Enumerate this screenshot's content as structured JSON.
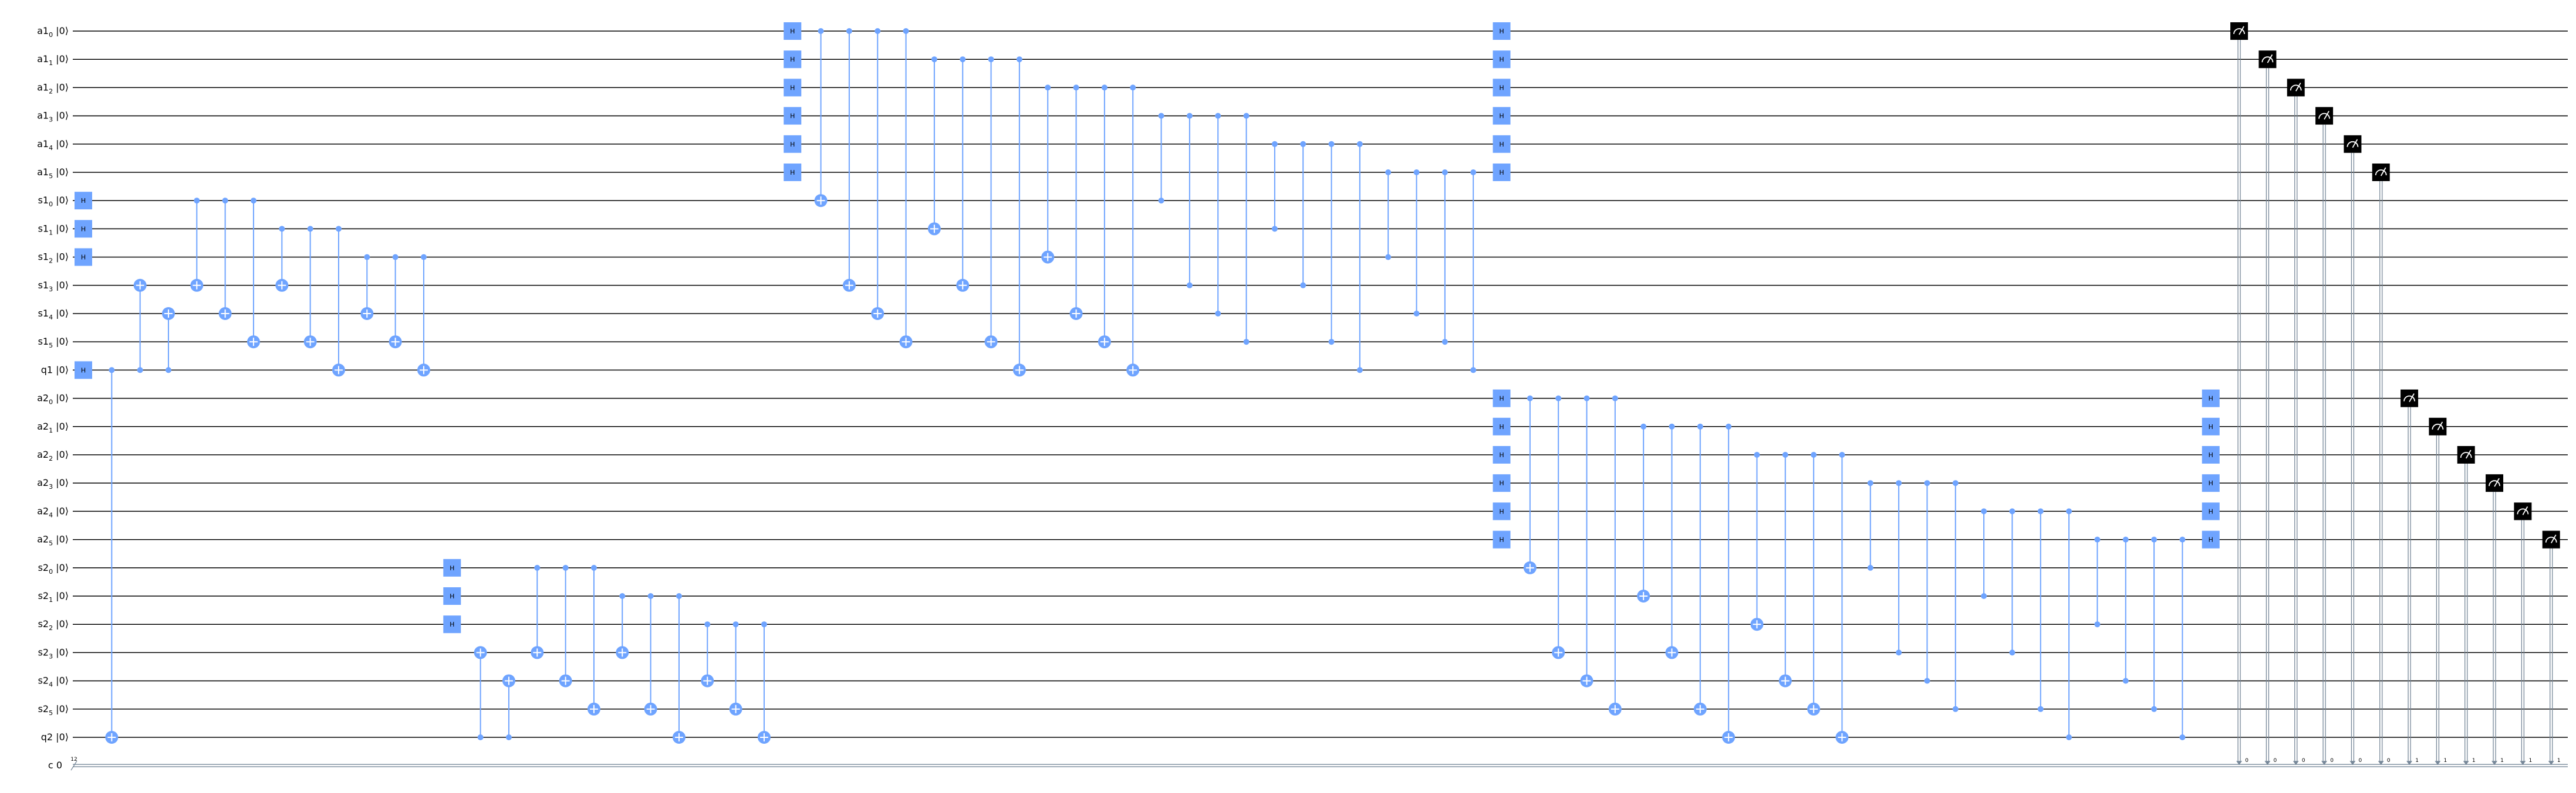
{
  "title": "",
  "colors": {
    "gate": "#6fa4ff",
    "measure": "#000000",
    "wire": "#000000",
    "classical_wire": "#778899"
  },
  "qubits": [
    {
      "reg": "a1",
      "idx": "0",
      "ket": "|0⟩"
    },
    {
      "reg": "a1",
      "idx": "1",
      "ket": "|0⟩"
    },
    {
      "reg": "a1",
      "idx": "2",
      "ket": "|0⟩"
    },
    {
      "reg": "a1",
      "idx": "3",
      "ket": "|0⟩"
    },
    {
      "reg": "a1",
      "idx": "4",
      "ket": "|0⟩"
    },
    {
      "reg": "a1",
      "idx": "5",
      "ket": "|0⟩"
    },
    {
      "reg": "s1",
      "idx": "0",
      "ket": "|0⟩"
    },
    {
      "reg": "s1",
      "idx": "1",
      "ket": "|0⟩"
    },
    {
      "reg": "s1",
      "idx": "2",
      "ket": "|0⟩"
    },
    {
      "reg": "s1",
      "idx": "3",
      "ket": "|0⟩"
    },
    {
      "reg": "s1",
      "idx": "4",
      "ket": "|0⟩"
    },
    {
      "reg": "s1",
      "idx": "5",
      "ket": "|0⟩"
    },
    {
      "reg": "q1",
      "idx": "",
      "ket": "|0⟩"
    },
    {
      "reg": "a2",
      "idx": "0",
      "ket": "|0⟩"
    },
    {
      "reg": "a2",
      "idx": "1",
      "ket": "|0⟩"
    },
    {
      "reg": "a2",
      "idx": "2",
      "ket": "|0⟩"
    },
    {
      "reg": "a2",
      "idx": "3",
      "ket": "|0⟩"
    },
    {
      "reg": "a2",
      "idx": "4",
      "ket": "|0⟩"
    },
    {
      "reg": "a2",
      "idx": "5",
      "ket": "|0⟩"
    },
    {
      "reg": "s2",
      "idx": "0",
      "ket": "|0⟩"
    },
    {
      "reg": "s2",
      "idx": "1",
      "ket": "|0⟩"
    },
    {
      "reg": "s2",
      "idx": "2",
      "ket": "|0⟩"
    },
    {
      "reg": "s2",
      "idx": "3",
      "ket": "|0⟩"
    },
    {
      "reg": "s2",
      "idx": "4",
      "ket": "|0⟩"
    },
    {
      "reg": "s2",
      "idx": "5",
      "ket": "|0⟩"
    },
    {
      "reg": "q2",
      "idx": "",
      "ket": "|0⟩"
    }
  ],
  "classical": {
    "label": "c",
    "value": "0",
    "width": "12"
  },
  "gate_label": "H",
  "ops": [
    {
      "t": "h",
      "c": 1,
      "q": [
        6,
        7,
        8,
        12
      ]
    },
    {
      "t": "cx",
      "c": 2,
      "ctrl": 12,
      "tgt": 25
    },
    {
      "t": "cx",
      "c": 3,
      "ctrl": 12,
      "tgt": 9
    },
    {
      "t": "cx",
      "c": 4,
      "ctrl": 12,
      "tgt": 10
    },
    {
      "t": "cx",
      "c": 5,
      "ctrl": 6,
      "tgt": 9
    },
    {
      "t": "cx",
      "c": 6,
      "ctrl": 6,
      "tgt": 10
    },
    {
      "t": "cx",
      "c": 7,
      "ctrl": 6,
      "tgt": 11
    },
    {
      "t": "cx",
      "c": 8,
      "ctrl": 7,
      "tgt": 9
    },
    {
      "t": "cx",
      "c": 9,
      "ctrl": 7,
      "tgt": 11
    },
    {
      "t": "cx",
      "c": 10,
      "ctrl": 7,
      "tgt": 12
    },
    {
      "t": "cx",
      "c": 11,
      "ctrl": 8,
      "tgt": 10
    },
    {
      "t": "cx",
      "c": 12,
      "ctrl": 8,
      "tgt": 11
    },
    {
      "t": "cx",
      "c": 13,
      "ctrl": 8,
      "tgt": 12
    },
    {
      "t": "h",
      "c": 14,
      "q": [
        19,
        20,
        21
      ]
    },
    {
      "t": "cx",
      "c": 15,
      "ctrl": 25,
      "tgt": 22
    },
    {
      "t": "cx",
      "c": 16,
      "ctrl": 25,
      "tgt": 23
    },
    {
      "t": "cx",
      "c": 17,
      "ctrl": 19,
      "tgt": 22
    },
    {
      "t": "cx",
      "c": 18,
      "ctrl": 19,
      "tgt": 23
    },
    {
      "t": "cx",
      "c": 19,
      "ctrl": 19,
      "tgt": 24
    },
    {
      "t": "cx",
      "c": 20,
      "ctrl": 20,
      "tgt": 22
    },
    {
      "t": "cx",
      "c": 21,
      "ctrl": 20,
      "tgt": 24
    },
    {
      "t": "cx",
      "c": 22,
      "ctrl": 20,
      "tgt": 25
    },
    {
      "t": "cx",
      "c": 23,
      "ctrl": 21,
      "tgt": 23
    },
    {
      "t": "cx",
      "c": 24,
      "ctrl": 21,
      "tgt": 24
    },
    {
      "t": "cx",
      "c": 25,
      "ctrl": 21,
      "tgt": 25
    },
    {
      "t": "h",
      "c": 26,
      "q": [
        0,
        1,
        2,
        3,
        4,
        5
      ]
    },
    {
      "t": "cx",
      "c": 27,
      "ctrl": 0,
      "tgt": 6
    },
    {
      "t": "cx",
      "c": 28,
      "ctrl": 0,
      "tgt": 9
    },
    {
      "t": "cx",
      "c": 29,
      "ctrl": 0,
      "tgt": 10
    },
    {
      "t": "cx",
      "c": 30,
      "ctrl": 0,
      "tgt": 11
    },
    {
      "t": "cx",
      "c": 31,
      "ctrl": 1,
      "tgt": 7
    },
    {
      "t": "cx",
      "c": 32,
      "ctrl": 1,
      "tgt": 9
    },
    {
      "t": "cx",
      "c": 33,
      "ctrl": 1,
      "tgt": 11
    },
    {
      "t": "cx",
      "c": 34,
      "ctrl": 1,
      "tgt": 12
    },
    {
      "t": "cx",
      "c": 35,
      "ctrl": 2,
      "tgt": 8
    },
    {
      "t": "cx",
      "c": 36,
      "ctrl": 2,
      "tgt": 10
    },
    {
      "t": "cx",
      "c": 37,
      "ctrl": 2,
      "tgt": 11
    },
    {
      "t": "cx",
      "c": 38,
      "ctrl": 2,
      "tgt": 12
    },
    {
      "t": "cz",
      "c": 39,
      "ctrl": 3,
      "tgt": 6
    },
    {
      "t": "cz",
      "c": 40,
      "ctrl": 3,
      "tgt": 9
    },
    {
      "t": "cz",
      "c": 41,
      "ctrl": 3,
      "tgt": 10
    },
    {
      "t": "cz",
      "c": 42,
      "ctrl": 3,
      "tgt": 11
    },
    {
      "t": "cz",
      "c": 43,
      "ctrl": 4,
      "tgt": 7
    },
    {
      "t": "cz",
      "c": 44,
      "ctrl": 4,
      "tgt": 9
    },
    {
      "t": "cz",
      "c": 45,
      "ctrl": 4,
      "tgt": 11
    },
    {
      "t": "cz",
      "c": 46,
      "ctrl": 4,
      "tgt": 12
    },
    {
      "t": "cz",
      "c": 47,
      "ctrl": 5,
      "tgt": 8
    },
    {
      "t": "cz",
      "c": 48,
      "ctrl": 5,
      "tgt": 10
    },
    {
      "t": "cz",
      "c": 49,
      "ctrl": 5,
      "tgt": 11
    },
    {
      "t": "cz",
      "c": 50,
      "ctrl": 5,
      "tgt": 12
    },
    {
      "t": "h",
      "c": 51,
      "q": [
        0,
        1,
        2,
        3,
        4,
        5
      ]
    },
    {
      "t": "h",
      "c": 51,
      "q": [
        13,
        14,
        15,
        16,
        17,
        18
      ]
    },
    {
      "t": "cx",
      "c": 52,
      "ctrl": 13,
      "tgt": 19
    },
    {
      "t": "cx",
      "c": 53,
      "ctrl": 13,
      "tgt": 22
    },
    {
      "t": "cx",
      "c": 54,
      "ctrl": 13,
      "tgt": 23
    },
    {
      "t": "cx",
      "c": 55,
      "ctrl": 13,
      "tgt": 24
    },
    {
      "t": "cx",
      "c": 56,
      "ctrl": 14,
      "tgt": 20
    },
    {
      "t": "cx",
      "c": 57,
      "ctrl": 14,
      "tgt": 22
    },
    {
      "t": "cx",
      "c": 58,
      "ctrl": 14,
      "tgt": 24
    },
    {
      "t": "cx",
      "c": 59,
      "ctrl": 14,
      "tgt": 25
    },
    {
      "t": "cx",
      "c": 60,
      "ctrl": 15,
      "tgt": 21
    },
    {
      "t": "cx",
      "c": 61,
      "ctrl": 15,
      "tgt": 23
    },
    {
      "t": "cx",
      "c": 62,
      "ctrl": 15,
      "tgt": 24
    },
    {
      "t": "cx",
      "c": 63,
      "ctrl": 15,
      "tgt": 25
    },
    {
      "t": "cz",
      "c": 64,
      "ctrl": 16,
      "tgt": 19
    },
    {
      "t": "cz",
      "c": 65,
      "ctrl": 16,
      "tgt": 22
    },
    {
      "t": "cz",
      "c": 66,
      "ctrl": 16,
      "tgt": 23
    },
    {
      "t": "cz",
      "c": 67,
      "ctrl": 16,
      "tgt": 24
    },
    {
      "t": "cz",
      "c": 68,
      "ctrl": 17,
      "tgt": 20
    },
    {
      "t": "cz",
      "c": 69,
      "ctrl": 17,
      "tgt": 22
    },
    {
      "t": "cz",
      "c": 70,
      "ctrl": 17,
      "tgt": 24
    },
    {
      "t": "cz",
      "c": 71,
      "ctrl": 17,
      "tgt": 25
    },
    {
      "t": "cz",
      "c": 72,
      "ctrl": 18,
      "tgt": 21
    },
    {
      "t": "cz",
      "c": 73,
      "ctrl": 18,
      "tgt": 23
    },
    {
      "t": "cz",
      "c": 74,
      "ctrl": 18,
      "tgt": 24
    },
    {
      "t": "cz",
      "c": 75,
      "ctrl": 18,
      "tgt": 25
    },
    {
      "t": "h",
      "c": 76,
      "q": [
        13,
        14,
        15,
        16,
        17,
        18
      ]
    },
    {
      "t": "m",
      "c": 77,
      "q": 0,
      "bit": "0"
    },
    {
      "t": "m",
      "c": 78,
      "q": 1,
      "bit": "0"
    },
    {
      "t": "m",
      "c": 79,
      "q": 2,
      "bit": "0"
    },
    {
      "t": "m",
      "c": 80,
      "q": 3,
      "bit": "0"
    },
    {
      "t": "m",
      "c": 81,
      "q": 4,
      "bit": "0"
    },
    {
      "t": "m",
      "c": 82,
      "q": 5,
      "bit": "0"
    },
    {
      "t": "m",
      "c": 83,
      "q": 13,
      "bit": "1"
    },
    {
      "t": "m",
      "c": 84,
      "q": 14,
      "bit": "1"
    },
    {
      "t": "m",
      "c": 85,
      "q": 15,
      "bit": "1"
    },
    {
      "t": "m",
      "c": 86,
      "q": 16,
      "bit": "1"
    },
    {
      "t": "m",
      "c": 87,
      "q": 17,
      "bit": "1"
    },
    {
      "t": "m",
      "c": 88,
      "q": 18,
      "bit": "1"
    }
  ]
}
